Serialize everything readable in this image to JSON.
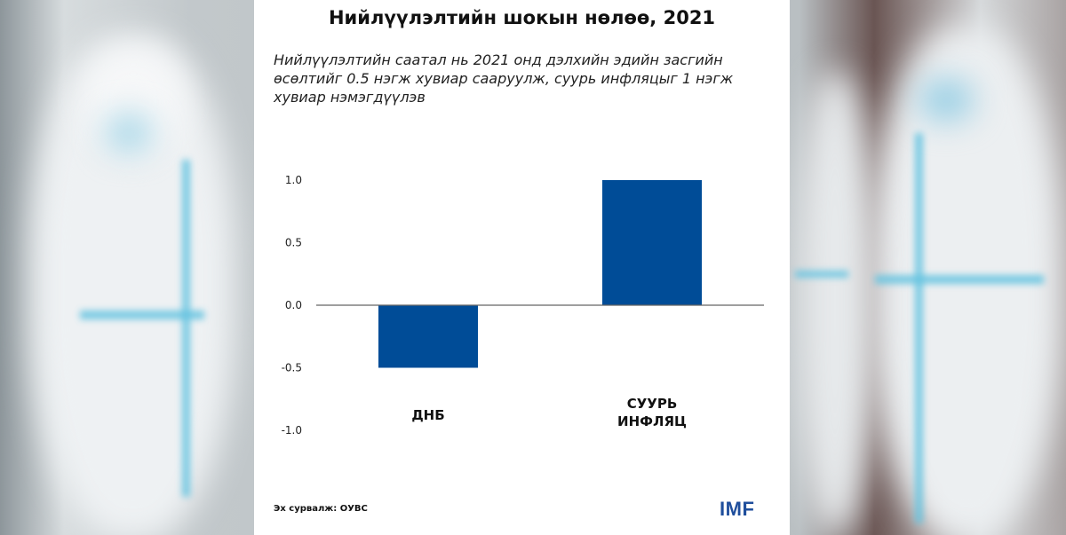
{
  "title": "Нийлүүлэлтийн шокын нөлөө, 2021",
  "subtitle": "Нийлүүлэлтийн саатал нь 2021 онд дэлхийн эдийн засгийн өсөлтийг 0.5 нэгж хувиар сааруулж, суурь инфляцыг 1 нэгж хувиар нэмэгдүүлэв",
  "source": "Эх сурвалж: ОУВС",
  "logo": "IMF",
  "colors": {
    "bar": "#004C97",
    "baseline": "#666666"
  },
  "chart_data": {
    "type": "bar",
    "title": "Нийлүүлэлтийн шокын нөлөө, 2021",
    "categories": [
      [
        "ДНБ"
      ],
      [
        "СУУРЬ",
        "ИНФЛЯЦ"
      ]
    ],
    "values": [
      -0.5,
      1.0
    ],
    "yticks": [
      "1.0",
      "0.5",
      "0.0",
      "-0.5",
      "-1.0"
    ],
    "ytick_values": [
      1.0,
      0.5,
      0.0,
      -0.5,
      -1.0
    ],
    "ylim": [
      -1.0,
      1.0
    ],
    "xlabel": "",
    "ylabel": "",
    "grid": false,
    "legend": "none"
  }
}
